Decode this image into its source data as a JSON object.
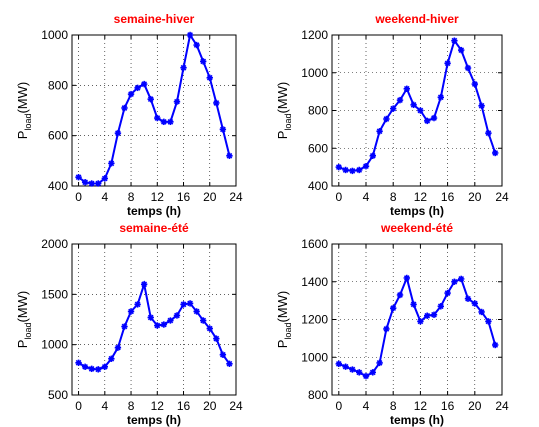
{
  "chart_data": [
    {
      "type": "line",
      "title": "semaine-hiver",
      "xlabel": "temps (h)",
      "ylabel_main": "P",
      "ylabel_sub": "load",
      "ylabel_unit": "(MW)",
      "xlim": [
        -1,
        24
      ],
      "ylim": [
        400,
        1000
      ],
      "xticks": [
        0,
        4,
        8,
        12,
        16,
        20,
        24
      ],
      "yticks": [
        400,
        600,
        800,
        1000
      ],
      "grid": true,
      "series": [
        {
          "x": [
            0,
            1,
            2,
            3,
            4,
            5,
            6,
            7,
            8,
            9,
            10,
            11,
            12,
            13,
            14,
            15,
            16,
            17,
            18,
            19,
            20,
            21,
            22,
            23
          ],
          "values": [
            435,
            415,
            410,
            410,
            430,
            490,
            610,
            710,
            765,
            790,
            805,
            745,
            670,
            655,
            655,
            735,
            870,
            1000,
            960,
            895,
            830,
            730,
            625,
            520
          ]
        }
      ]
    },
    {
      "type": "line",
      "title": "weekend-hiver",
      "xlabel": "temps (h)",
      "ylabel_main": "P",
      "ylabel_sub": "load",
      "ylabel_unit": "(MW)",
      "xlim": [
        -1,
        24
      ],
      "ylim": [
        400,
        1200
      ],
      "xticks": [
        0,
        4,
        8,
        12,
        16,
        20,
        24
      ],
      "yticks": [
        400,
        600,
        800,
        1000,
        1200
      ],
      "grid": true,
      "series": [
        {
          "x": [
            0,
            1,
            2,
            3,
            4,
            5,
            6,
            7,
            8,
            9,
            10,
            11,
            12,
            13,
            14,
            15,
            16,
            17,
            18,
            19,
            20,
            21,
            22,
            23
          ],
          "values": [
            500,
            485,
            480,
            485,
            505,
            560,
            690,
            755,
            810,
            855,
            915,
            830,
            800,
            745,
            760,
            870,
            1050,
            1170,
            1120,
            1025,
            940,
            825,
            680,
            575
          ]
        }
      ]
    },
    {
      "type": "line",
      "title": "semaine-été",
      "xlabel": "temps (h)",
      "ylabel_main": "P",
      "ylabel_sub": "load",
      "ylabel_unit": "(MW)",
      "xlim": [
        -1,
        24
      ],
      "ylim": [
        500,
        2000
      ],
      "xticks": [
        0,
        4,
        8,
        12,
        16,
        20,
        24
      ],
      "yticks": [
        500,
        1000,
        1500,
        2000
      ],
      "grid": true,
      "series": [
        {
          "x": [
            0,
            1,
            2,
            3,
            4,
            5,
            6,
            7,
            8,
            9,
            10,
            11,
            12,
            13,
            14,
            15,
            16,
            17,
            18,
            19,
            20,
            21,
            22,
            23
          ],
          "values": [
            820,
            780,
            760,
            755,
            780,
            860,
            970,
            1180,
            1330,
            1400,
            1600,
            1270,
            1190,
            1200,
            1240,
            1290,
            1400,
            1410,
            1330,
            1240,
            1160,
            1060,
            900,
            810
          ]
        }
      ]
    },
    {
      "type": "line",
      "title": "weekend-été",
      "xlabel": "temps (h)",
      "ylabel_main": "P",
      "ylabel_sub": "load",
      "ylabel_unit": "(MW)",
      "xlim": [
        -1,
        24
      ],
      "ylim": [
        800,
        1600
      ],
      "xticks": [
        0,
        4,
        8,
        12,
        16,
        20,
        24
      ],
      "yticks": [
        800,
        1000,
        1200,
        1400,
        1600
      ],
      "grid": true,
      "series": [
        {
          "x": [
            0,
            1,
            2,
            3,
            4,
            5,
            6,
            7,
            8,
            9,
            10,
            11,
            12,
            13,
            14,
            15,
            16,
            17,
            18,
            19,
            20,
            21,
            22,
            23
          ],
          "values": [
            965,
            950,
            935,
            920,
            900,
            920,
            970,
            1150,
            1260,
            1330,
            1420,
            1280,
            1190,
            1220,
            1225,
            1270,
            1340,
            1400,
            1415,
            1310,
            1285,
            1240,
            1190,
            1065
          ]
        }
      ]
    }
  ],
  "style": {
    "line_color": "#0000ff",
    "title_color": "#ff0000"
  }
}
